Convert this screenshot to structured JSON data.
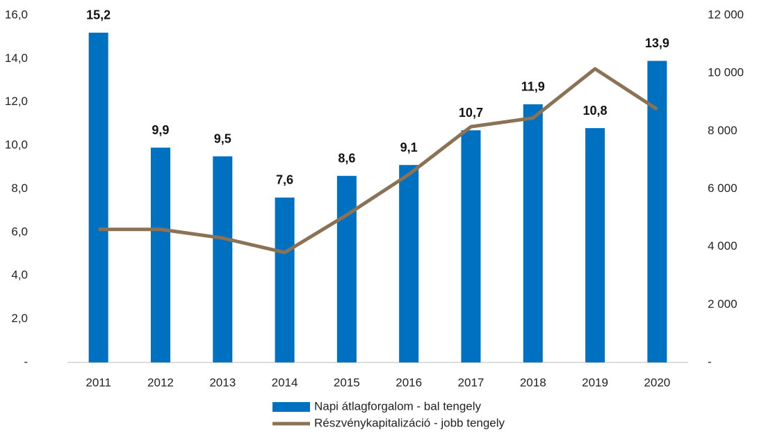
{
  "chart_data": {
    "type": "bar_line",
    "categories": [
      "2011",
      "2012",
      "2013",
      "2014",
      "2015",
      "2016",
      "2017",
      "2018",
      "2019",
      "2020"
    ],
    "series": [
      {
        "name": "Napi átlagforgalom - bal tengely",
        "type": "bar",
        "color": "#0070c0",
        "values": [
          15.2,
          9.9,
          9.5,
          7.6,
          8.6,
          9.1,
          10.7,
          11.9,
          10.8,
          13.9
        ],
        "value_labels": [
          "15,2",
          "9,9",
          "9,5",
          "7,6",
          "8,6",
          "9,1",
          "10,7",
          "11,9",
          "10,8",
          "13,9"
        ]
      },
      {
        "name": "Részvénykapitalizáció - jobb tengely",
        "type": "line",
        "axis": "y2",
        "color": "#8b7254",
        "values": [
          4600,
          4600,
          4300,
          3800,
          5100,
          6500,
          8150,
          8450,
          10150,
          8750
        ]
      }
    ],
    "ylim": [
      0,
      16
    ],
    "yticks": [
      {
        "value": 0,
        "label": "-"
      },
      {
        "value": 2,
        "label": "2,0"
      },
      {
        "value": 4,
        "label": "4,0"
      },
      {
        "value": 6,
        "label": "6,0"
      },
      {
        "value": 8,
        "label": "8,0"
      },
      {
        "value": 10,
        "label": "10,0"
      },
      {
        "value": 12,
        "label": "12,0"
      },
      {
        "value": 14,
        "label": "14,0"
      },
      {
        "value": 16,
        "label": "16,0"
      }
    ],
    "y2lim": [
      0,
      12000
    ],
    "y2ticks": [
      {
        "value": 0,
        "label": "-"
      },
      {
        "value": 2000,
        "label": "2 000"
      },
      {
        "value": 4000,
        "label": "4 000"
      },
      {
        "value": 6000,
        "label": "6 000"
      },
      {
        "value": 8000,
        "label": "8 000"
      },
      {
        "value": 10000,
        "label": "10 000"
      },
      {
        "value": 12000,
        "label": "12 000"
      }
    ],
    "legend": "bottom"
  }
}
